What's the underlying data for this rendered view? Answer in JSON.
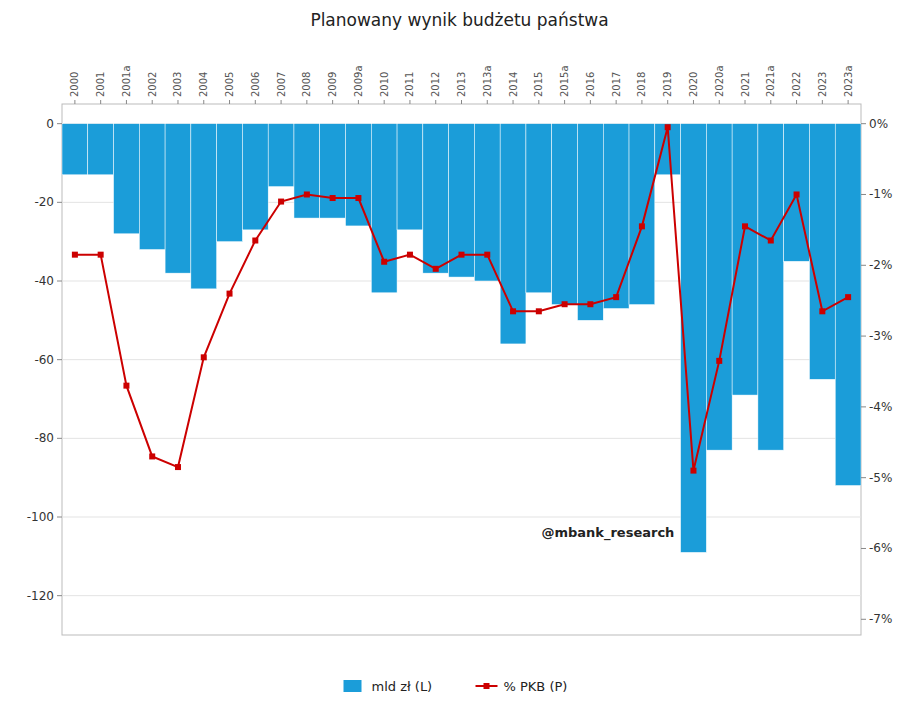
{
  "chart_data": {
    "type": "bar",
    "title": "Planowany wynik budżetu państwa",
    "annotation": "@mbank_research",
    "categories": [
      "2000",
      "2001",
      "2001a",
      "2002",
      "2003",
      "2004",
      "2005",
      "2006",
      "2007",
      "2008",
      "2009",
      "2009a",
      "2010",
      "2011",
      "2012",
      "2013",
      "2013a",
      "2014",
      "2015",
      "2015a",
      "2016",
      "2017",
      "2018",
      "2019",
      "2020",
      "2020a",
      "2021",
      "2021a",
      "2022",
      "2023",
      "2023a"
    ],
    "series": [
      {
        "name": "mld zł (L)",
        "type": "bar",
        "color": "#1b9dd9",
        "values": [
          -13,
          -13,
          -28,
          -32,
          -38,
          -42,
          -30,
          -27,
          -16,
          -24,
          -24,
          -26,
          -43,
          -27,
          -38,
          -39,
          -40,
          -56,
          -43,
          -46,
          -50,
          -47,
          -46,
          -13,
          -109,
          -83,
          -69,
          -83,
          -35,
          -65,
          -92
        ]
      },
      {
        "name": "% PKB (P)",
        "type": "line",
        "axis": "y2",
        "color": "#cc0000",
        "marker": "square",
        "line_style": "solid",
        "values": [
          -1.85,
          -1.85,
          -3.7,
          -4.7,
          -4.85,
          -3.3,
          -2.4,
          -1.65,
          -1.1,
          -1.0,
          -1.05,
          -1.05,
          -1.95,
          -1.85,
          -2.05,
          -1.85,
          -1.85,
          -2.65,
          -2.65,
          -2.55,
          -2.55,
          -2.45,
          -1.45,
          -0.05,
          -4.9,
          -3.35,
          -1.45,
          -1.65,
          -1.0,
          -2.65,
          -2.45
        ]
      }
    ],
    "ylim": [
      -130,
      5
    ],
    "yticks": [
      0,
      -20,
      -40,
      -60,
      -80,
      -100,
      -120
    ],
    "y2lim": [
      -7.222,
      0.278
    ],
    "y2ticks": [
      {
        "value": 0,
        "label": "0%"
      },
      {
        "value": -1,
        "label": "-1%"
      },
      {
        "value": -2,
        "label": "-2%"
      },
      {
        "value": -3,
        "label": "-3%"
      },
      {
        "value": -4,
        "label": "-4%"
      },
      {
        "value": -5,
        "label": "-5%"
      },
      {
        "value": -6,
        "label": "-6%"
      },
      {
        "value": -7,
        "label": "-7%"
      }
    ],
    "grid": true,
    "legend": "bottom"
  }
}
